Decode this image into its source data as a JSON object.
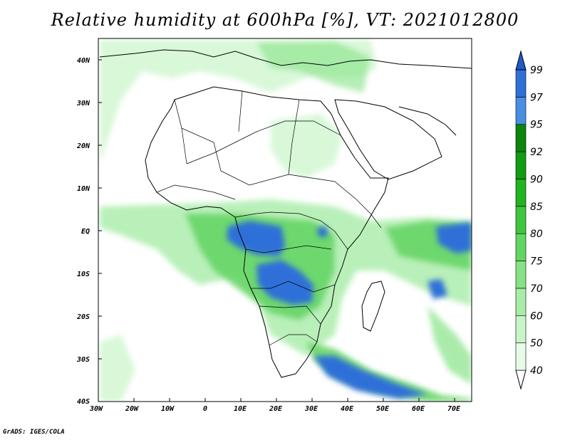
{
  "title": "Relative humidity at 600hPa [%], VT: 2021012800",
  "credit": "GrADS: IGES/COLA",
  "map": {
    "lon_range": [
      -30,
      75
    ],
    "lat_range": [
      -40,
      45
    ],
    "lon_ticks": [
      "30W",
      "20W",
      "10W",
      "0",
      "10E",
      "20E",
      "30E",
      "40E",
      "50E",
      "60E",
      "70E"
    ],
    "lat_ticks": [
      "40N",
      "30N",
      "20N",
      "10N",
      "EQ",
      "10S",
      "20S",
      "30S",
      "40S"
    ]
  },
  "colorbar": {
    "levels": [
      "40",
      "50",
      "60",
      "70",
      "75",
      "80",
      "85",
      "90",
      "92",
      "95",
      "97",
      "99"
    ],
    "colors": [
      "#ffffff",
      "#e6fce6",
      "#c8f5c8",
      "#a8eca8",
      "#86e286",
      "#62d562",
      "#3fc63f",
      "#21b421",
      "#119c11",
      "#0b860b",
      "#4a90e2",
      "#2f6fd8",
      "#1e5ac8"
    ]
  }
}
